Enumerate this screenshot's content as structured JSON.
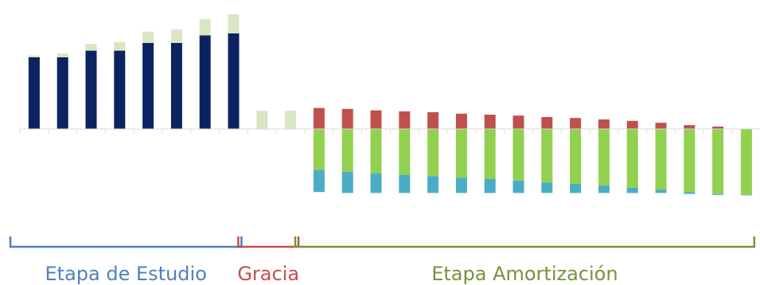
{
  "chart_data": {
    "type": "bar",
    "title": "",
    "xlabel": "",
    "ylabel": "",
    "ylim": [
      -100,
      120
    ],
    "grid": false,
    "legend": "none",
    "stacked": true,
    "categories": [
      "1",
      "2",
      "3",
      "4",
      "5",
      "6",
      "7",
      "8",
      "9",
      "10",
      "11",
      "12",
      "13",
      "14",
      "15",
      "16",
      "17",
      "18",
      "19",
      "20",
      "21",
      "22",
      "23",
      "24",
      "25",
      "26"
    ],
    "series": [
      {
        "color": "#0b2361",
        "values": [
          75,
          75,
          82,
          82,
          90,
          90,
          98,
          100,
          0,
          0,
          0,
          0,
          0,
          0,
          0,
          0,
          0,
          0,
          0,
          0,
          0,
          0,
          0,
          0,
          0,
          0
        ]
      },
      {
        "color": "#d9e6c4",
        "values": [
          2,
          4,
          7,
          9,
          12,
          14,
          17,
          20,
          19,
          19,
          0,
          0,
          0,
          0,
          0,
          0,
          0,
          0,
          0,
          0,
          0,
          0,
          0,
          0,
          0,
          0
        ]
      },
      {
        "color": "#c0504d",
        "values": [
          0,
          0,
          0,
          0,
          0,
          0,
          0,
          0,
          0,
          0,
          22,
          21,
          19.5,
          18.5,
          17.5,
          16,
          15,
          14,
          12.5,
          11.5,
          10,
          8.5,
          6.5,
          4,
          2.5,
          0
        ]
      },
      {
        "color": "#92d050",
        "values": [
          0,
          0,
          0,
          0,
          0,
          0,
          0,
          0,
          0,
          0,
          -43,
          -45,
          -46.5,
          -48,
          -49.5,
          -51,
          -52.5,
          -54,
          -56,
          -57.5,
          -59.5,
          -61.5,
          -63.5,
          -66,
          -68,
          -69
        ]
      },
      {
        "color": "#4bacc6",
        "values": [
          0,
          0,
          0,
          0,
          0,
          0,
          0,
          0,
          0,
          0,
          -23,
          -22,
          -20.5,
          -19,
          -17.5,
          -16,
          -14.5,
          -13,
          -11,
          -9.5,
          -7.5,
          -5.5,
          -3.5,
          -2,
          -1,
          -0.5
        ]
      }
    ],
    "annotations": [
      {
        "text": "Etapa de Estudio",
        "from_category": 1,
        "to_category": 8,
        "color": "#4f81bd"
      },
      {
        "text": "Gracia",
        "from_category": 9,
        "to_category": 10,
        "color": "#c0504d"
      },
      {
        "text": "Etapa Amortización",
        "from_category": 11,
        "to_category": 26,
        "color": "#77933c"
      }
    ]
  }
}
